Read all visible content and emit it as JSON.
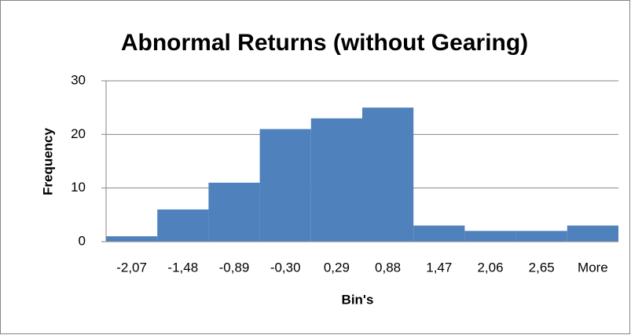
{
  "chart_data": {
    "type": "bar",
    "title": "Abnormal Returns (without Gearing)",
    "x_label": "Bin's",
    "y_label": "Frequency",
    "categories": [
      "-2,07",
      "-1,48",
      "-0,89",
      "-0,30",
      "0,29",
      "0,88",
      "1,47",
      "2,06",
      "2,65",
      "More"
    ],
    "values": [
      1,
      6,
      11,
      21,
      23,
      25,
      3,
      2,
      2,
      3
    ],
    "color": "#4f81bd",
    "ylim": [
      0,
      30
    ],
    "yticks": [
      0,
      10,
      20,
      30
    ],
    "grid": true
  }
}
